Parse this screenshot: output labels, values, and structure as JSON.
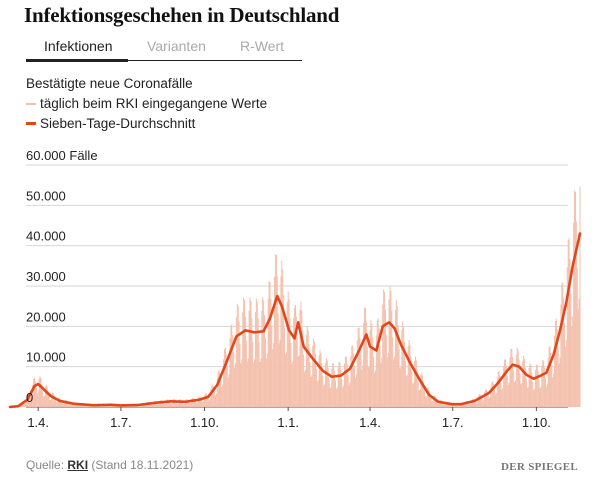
{
  "title": "Infektionsgeschehen in Deutschland",
  "tabs": [
    {
      "label": "Infektionen",
      "active": true
    },
    {
      "label": "Varianten",
      "active": false
    },
    {
      "label": "R-Wert",
      "active": false
    }
  ],
  "legend": {
    "heading": "Bestätigte neue Coronafälle",
    "items": [
      {
        "label": "täglich beim RKI eingegangene Werte",
        "color": "#f3c1ad"
      },
      {
        "label": "Sieben-Tage-Durchschnitt",
        "color": "#e0471b"
      }
    ]
  },
  "footer": {
    "source_prefix": "Quelle:",
    "source_name": "RKI",
    "stand": "(Stand 18.11.2021)",
    "logo": "DER SPIEGEL"
  },
  "chart_data": {
    "type": "line",
    "unit_label": "Fälle",
    "y_ticks": [
      {
        "value": 0,
        "label": "0"
      },
      {
        "value": 10000,
        "label": "10.000"
      },
      {
        "value": 20000,
        "label": "20.000"
      },
      {
        "value": 30000,
        "label": "30.000"
      },
      {
        "value": 40000,
        "label": "40.000"
      },
      {
        "value": 50000,
        "label": "50.000"
      },
      {
        "value": 60000,
        "label": "60.000 Fälle"
      }
    ],
    "ylim": [
      0,
      60000
    ],
    "x_range": [
      "2020-03-01",
      "2021-11-18"
    ],
    "x_ticks": [
      {
        "date": "2020-04-01",
        "label": "1.4."
      },
      {
        "date": "2020-07-01",
        "label": "1.7."
      },
      {
        "date": "2020-10-01",
        "label": "1.10."
      },
      {
        "date": "2021-01-01",
        "label": "1.1."
      },
      {
        "date": "2021-04-01",
        "label": "1.4."
      },
      {
        "date": "2021-07-01",
        "label": "1.7."
      },
      {
        "date": "2021-10-01",
        "label": "1.10."
      }
    ],
    "grid": true,
    "series": [
      {
        "name": "täglich beim RKI eingegangene Werte",
        "color": "#f3c1ad",
        "kind": "daily",
        "weekly_amplitude": 0.45
      },
      {
        "name": "Sieben-Tage-Durchschnitt",
        "color": "#e0471b",
        "kind": "average",
        "points": [
          [
            "2020-03-01",
            0
          ],
          [
            "2020-03-10",
            200
          ],
          [
            "2020-03-20",
            1800
          ],
          [
            "2020-03-28",
            5200
          ],
          [
            "2020-04-01",
            5700
          ],
          [
            "2020-04-08",
            4200
          ],
          [
            "2020-04-15",
            2700
          ],
          [
            "2020-04-25",
            1500
          ],
          [
            "2020-05-10",
            800
          ],
          [
            "2020-06-01",
            450
          ],
          [
            "2020-06-20",
            550
          ],
          [
            "2020-07-01",
            400
          ],
          [
            "2020-07-20",
            500
          ],
          [
            "2020-08-10",
            1100
          ],
          [
            "2020-08-25",
            1400
          ],
          [
            "2020-09-10",
            1300
          ],
          [
            "2020-09-25",
            1800
          ],
          [
            "2020-10-05",
            2500
          ],
          [
            "2020-10-15",
            5500
          ],
          [
            "2020-10-25",
            11000
          ],
          [
            "2020-11-05",
            17500
          ],
          [
            "2020-11-15",
            19000
          ],
          [
            "2020-11-25",
            18500
          ],
          [
            "2020-12-05",
            18800
          ],
          [
            "2020-12-12",
            22000
          ],
          [
            "2020-12-20",
            27500
          ],
          [
            "2020-12-25",
            25000
          ],
          [
            "2021-01-02",
            19000
          ],
          [
            "2021-01-08",
            17000
          ],
          [
            "2021-01-12",
            21000
          ],
          [
            "2021-01-18",
            15000
          ],
          [
            "2021-01-28",
            12000
          ],
          [
            "2021-02-08",
            9000
          ],
          [
            "2021-02-18",
            7500
          ],
          [
            "2021-02-28",
            7800
          ],
          [
            "2021-03-10",
            9500
          ],
          [
            "2021-03-20",
            14000
          ],
          [
            "2021-03-28",
            18000
          ],
          [
            "2021-04-01",
            15000
          ],
          [
            "2021-04-08",
            14000
          ],
          [
            "2021-04-15",
            20000
          ],
          [
            "2021-04-22",
            21000
          ],
          [
            "2021-04-28",
            19500
          ],
          [
            "2021-05-05",
            15500
          ],
          [
            "2021-05-15",
            11000
          ],
          [
            "2021-05-25",
            7000
          ],
          [
            "2021-06-05",
            3000
          ],
          [
            "2021-06-15",
            1300
          ],
          [
            "2021-06-30",
            700
          ],
          [
            "2021-07-10",
            700
          ],
          [
            "2021-07-25",
            1500
          ],
          [
            "2021-08-10",
            3500
          ],
          [
            "2021-08-20",
            6000
          ],
          [
            "2021-08-30",
            9000
          ],
          [
            "2021-09-05",
            10500
          ],
          [
            "2021-09-12",
            10000
          ],
          [
            "2021-09-20",
            8000
          ],
          [
            "2021-09-28",
            7000
          ],
          [
            "2021-10-05",
            7700
          ],
          [
            "2021-10-12",
            8500
          ],
          [
            "2021-10-20",
            13000
          ],
          [
            "2021-10-27",
            19000
          ],
          [
            "2021-11-03",
            26000
          ],
          [
            "2021-11-10",
            35000
          ],
          [
            "2021-11-18",
            43000
          ]
        ]
      }
    ]
  }
}
